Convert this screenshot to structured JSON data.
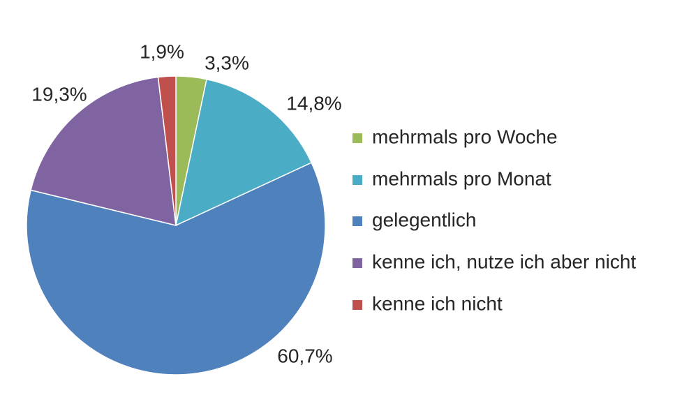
{
  "chart_data": {
    "type": "pie",
    "categories": [
      "mehrmals pro Woche",
      "mehrmals pro Monat",
      "gelegentlich",
      "kenne ich, nutze ich aber nicht",
      "kenne ich nicht"
    ],
    "values": [
      3.3,
      14.8,
      60.7,
      19.3,
      1.9
    ],
    "value_labels": [
      "3,3%",
      "14,8%",
      "60,7%",
      "19,3%",
      "1,9%"
    ],
    "colors": [
      "#9bbb59",
      "#4bacc6",
      "#4f81bd",
      "#8064a2",
      "#c0504d"
    ],
    "legend": "right"
  }
}
